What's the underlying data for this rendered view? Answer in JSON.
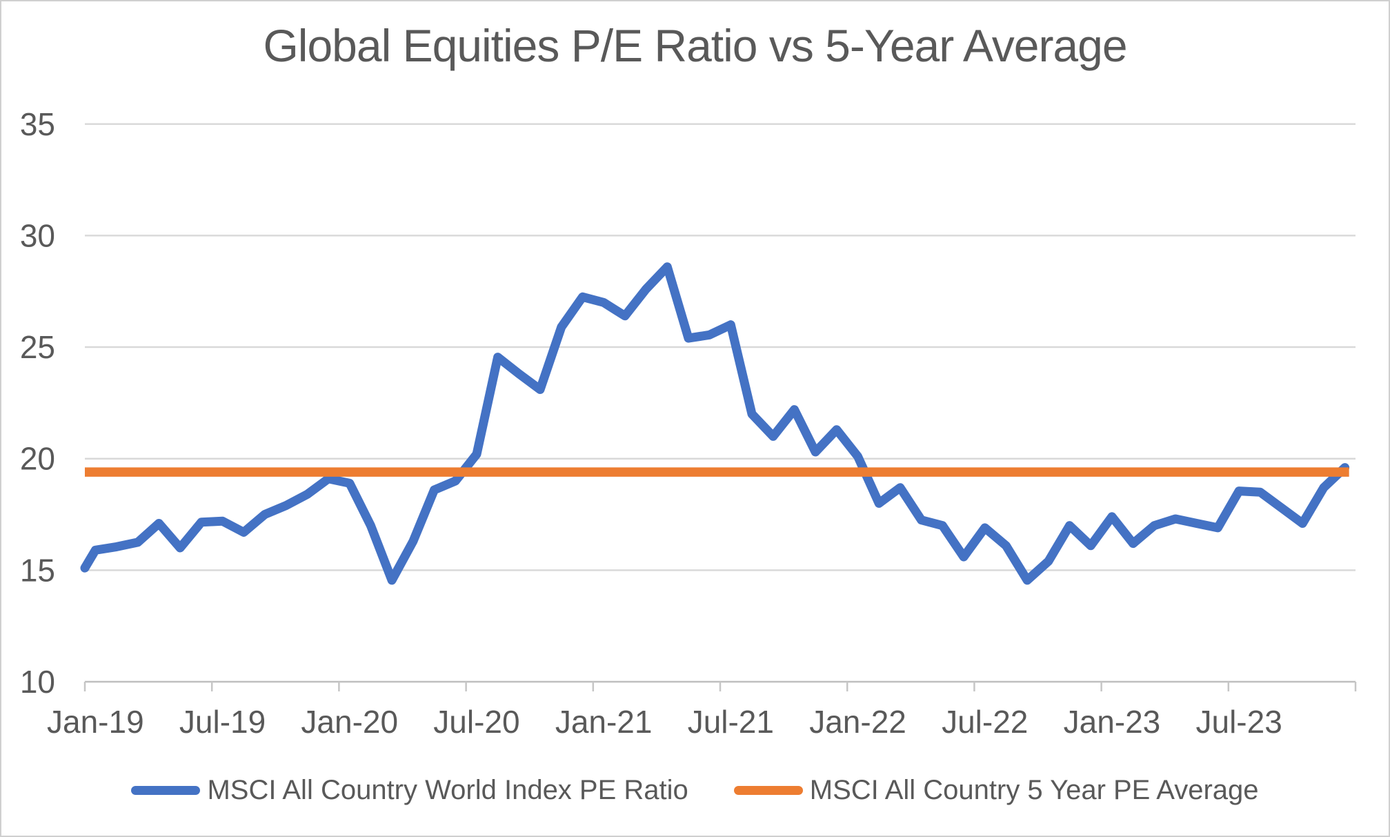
{
  "title": "Global Equities P/E Ratio vs 5-Year Average",
  "legend": {
    "series1": "MSCI All Country World Index PE Ratio",
    "series2": "MSCI All Country 5 Year PE Average"
  },
  "colors": {
    "pe_line": "#4472C4",
    "avg_line": "#ED7D31",
    "text": "#595959",
    "gridline": "#D9D9D9",
    "axis_line": "#BFBFBF",
    "tick": "#C6C6C6",
    "canvas_border": "#CFCFCF"
  },
  "y_axis": {
    "tick_labels": [
      "35",
      "30",
      "25",
      "20",
      "15",
      "10"
    ],
    "min": 10,
    "max": 35,
    "step": 5
  },
  "x_axis": {
    "tick_labels": [
      "Jan-19",
      "Jul-19",
      "Jan-20",
      "Jul-20",
      "Jan-21",
      "Jul-21",
      "Jan-22",
      "Jul-22",
      "Jan-23",
      "Jul-23"
    ]
  },
  "chart_data": {
    "type": "line",
    "title": "Global Equities P/E Ratio vs 5-Year Average",
    "xlabel": "",
    "ylabel": "",
    "ylim": [
      10,
      35
    ],
    "grid": true,
    "legend_position": "bottom",
    "x": [
      "Jan-19",
      "Feb-19",
      "Mar-19",
      "Apr-19",
      "May-19",
      "Jun-19",
      "Jul-19",
      "Aug-19",
      "Sep-19",
      "Oct-19",
      "Nov-19",
      "Dec-19",
      "Jan-20",
      "Feb-20",
      "Mar-20",
      "Apr-20",
      "May-20",
      "Jun-20",
      "Jul-20",
      "Aug-20",
      "Sep-20",
      "Oct-20",
      "Nov-20",
      "Dec-20",
      "Jan-21",
      "Feb-21",
      "Mar-21",
      "Apr-21",
      "May-21",
      "Jun-21",
      "Jul-21",
      "Aug-21",
      "Sep-21",
      "Oct-21",
      "Nov-21",
      "Dec-21",
      "Jan-22",
      "Feb-22",
      "Mar-22",
      "Apr-22",
      "May-22",
      "Jun-22",
      "Jul-22",
      "Aug-22",
      "Sep-22",
      "Oct-22",
      "Nov-22",
      "Dec-22",
      "Jan-23",
      "Feb-23",
      "Mar-23",
      "Apr-23",
      "May-23",
      "Jun-23",
      "Jul-23",
      "Aug-23",
      "Sep-23",
      "Oct-23",
      "Nov-23",
      "Dec-23"
    ],
    "series": [
      {
        "name": "MSCI All Country World Index PE Ratio",
        "color": "#4472C4",
        "lead_in_edge_value": 15.1,
        "values": [
          15.9,
          16.05,
          16.25,
          17.1,
          16.0,
          17.15,
          17.2,
          16.7,
          17.5,
          17.9,
          18.4,
          19.1,
          18.9,
          17.0,
          14.55,
          16.3,
          18.6,
          19.0,
          20.2,
          24.55,
          23.8,
          23.1,
          25.9,
          27.25,
          27.0,
          26.4,
          27.6,
          28.6,
          25.4,
          25.55,
          26.0,
          22.0,
          21.0,
          22.2,
          20.3,
          21.3,
          20.1,
          18.0,
          18.7,
          17.25,
          17.0,
          15.6,
          16.9,
          16.1,
          14.55,
          15.4,
          17.0,
          16.1,
          17.4,
          16.2,
          17.0,
          17.3,
          17.1,
          16.9,
          18.55,
          18.5,
          17.8,
          17.1,
          18.7,
          19.6
        ]
      },
      {
        "name": "MSCI All Country 5 Year PE Average",
        "color": "#ED7D31",
        "constant_value": 19.4
      }
    ]
  }
}
